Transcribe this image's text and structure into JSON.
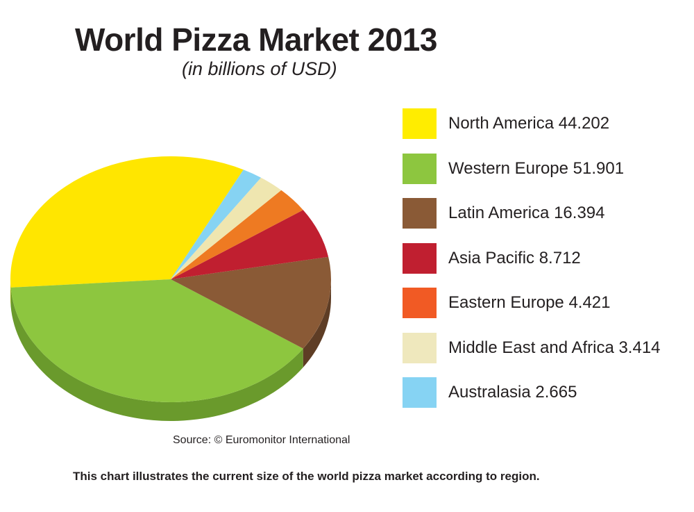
{
  "chart_data": {
    "type": "pie",
    "title": "World Pizza Market 2013",
    "subtitle": "(in billions of USD)",
    "categories": [
      "North America",
      "Western Europe",
      "Latin America",
      "Asia Pacific",
      "Eastern Europe",
      "Middle East and Africa",
      "Australasia"
    ],
    "values": [
      44.202,
      51.901,
      16.394,
      8.712,
      4.421,
      3.414,
      2.665
    ],
    "colors": [
      "#ffe600",
      "#8dc63f",
      "#8a5a36",
      "#c01f30",
      "#ee7a22",
      "#efe6b0",
      "#86d3f3"
    ],
    "side_colors": [
      "#c8b600",
      "#6a9a2c",
      "#5e3d25",
      "#8a1622",
      "#b75b18",
      "#bdb482",
      "#5fa8c8"
    ],
    "legend": [
      {
        "label": "North America 44.202",
        "color": "#ffed00"
      },
      {
        "label": "Western Europe 51.901",
        "color": "#8dc63f"
      },
      {
        "label": "Latin America 16.394",
        "color": "#8a5a36"
      },
      {
        "label": "Asia Pacific 8.712",
        "color": "#c01f30"
      },
      {
        "label": "Eastern Europe 4.421",
        "color": "#f15a24"
      },
      {
        "label": "Middle East and Africa 3.414",
        "color": "#efe8bd"
      },
      {
        "label": "Australasia 2.665",
        "color": "#86d3f3"
      }
    ],
    "legend_placement": "right",
    "style": "3d-tilted"
  },
  "source": "Source: © Euromonitor International",
  "caption": "This chart illustrates the current size of the world pizza market according to region."
}
